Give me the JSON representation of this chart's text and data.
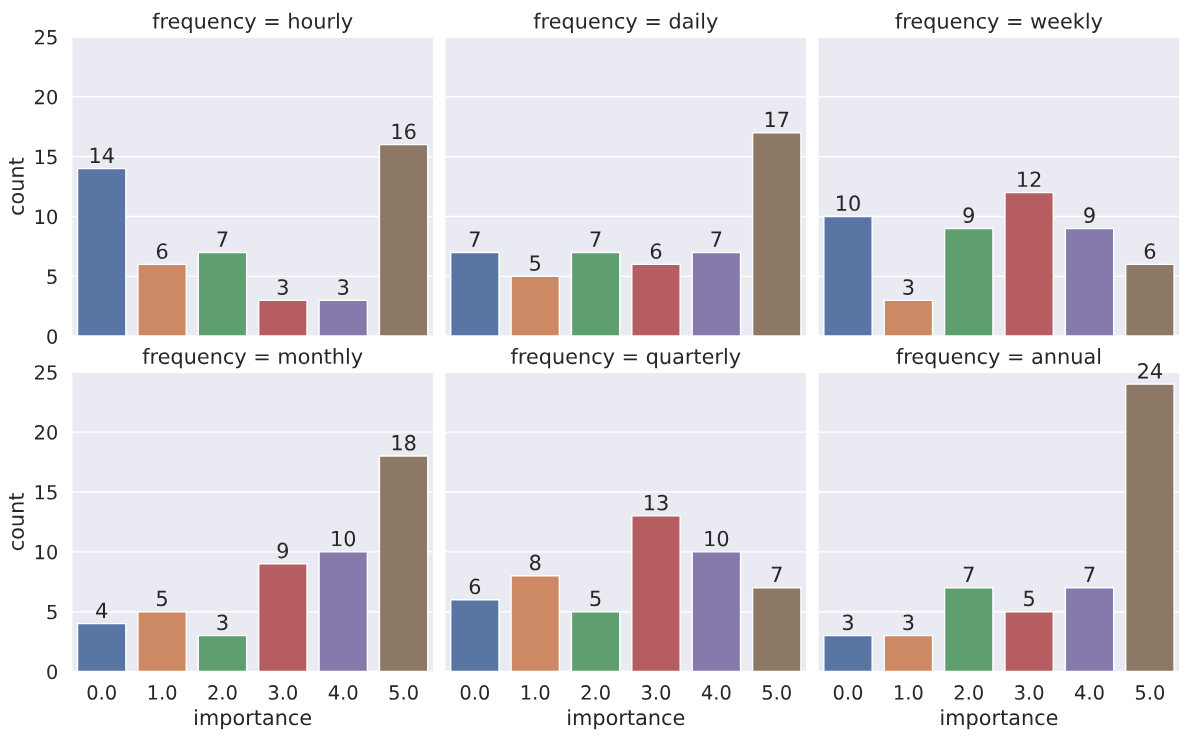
{
  "chart_data": [
    {
      "type": "bar",
      "title": "frequency = hourly",
      "ylabel": "count",
      "categories": [
        "0.0",
        "1.0",
        "2.0",
        "3.0",
        "4.0",
        "5.0"
      ],
      "values": [
        14,
        6,
        7,
        3,
        3,
        16
      ],
      "colors": [
        "#5975a4",
        "#cc8963",
        "#5f9e6e",
        "#b55d60",
        "#857aab",
        "#8d7866"
      ],
      "ylim": [
        0,
        25
      ],
      "yticks": [
        0,
        5,
        10,
        15,
        20,
        25
      ],
      "grid": "y",
      "data_labels": true,
      "tick_labels": "y"
    },
    {
      "type": "bar",
      "title": "frequency = daily",
      "categories": [
        "0.0",
        "1.0",
        "2.0",
        "3.0",
        "4.0",
        "5.0"
      ],
      "values": [
        7,
        5,
        7,
        6,
        7,
        17
      ],
      "colors": [
        "#5975a4",
        "#cc8963",
        "#5f9e6e",
        "#b55d60",
        "#857aab",
        "#8d7866"
      ],
      "ylim": [
        0,
        25
      ],
      "yticks": [
        0,
        5,
        10,
        15,
        20,
        25
      ],
      "grid": "y",
      "data_labels": true,
      "tick_labels": false
    },
    {
      "type": "bar",
      "title": "frequency = weekly",
      "categories": [
        "0.0",
        "1.0",
        "2.0",
        "3.0",
        "4.0",
        "5.0"
      ],
      "values": [
        10,
        3,
        9,
        12,
        9,
        6
      ],
      "colors": [
        "#5975a4",
        "#cc8963",
        "#5f9e6e",
        "#b55d60",
        "#857aab",
        "#8d7866"
      ],
      "ylim": [
        0,
        25
      ],
      "yticks": [
        0,
        5,
        10,
        15,
        20,
        25
      ],
      "grid": "y",
      "data_labels": true,
      "tick_labels": false
    },
    {
      "type": "bar",
      "title": "frequency = monthly",
      "xlabel": "importance",
      "ylabel": "count",
      "categories": [
        "0.0",
        "1.0",
        "2.0",
        "3.0",
        "4.0",
        "5.0"
      ],
      "values": [
        4,
        5,
        3,
        9,
        10,
        18
      ],
      "colors": [
        "#5975a4",
        "#cc8963",
        "#5f9e6e",
        "#b55d60",
        "#857aab",
        "#8d7866"
      ],
      "ylim": [
        0,
        25
      ],
      "yticks": [
        0,
        5,
        10,
        15,
        20,
        25
      ],
      "grid": "y",
      "data_labels": true
    },
    {
      "type": "bar",
      "title": "frequency = quarterly",
      "xlabel": "importance",
      "categories": [
        "0.0",
        "1.0",
        "2.0",
        "3.0",
        "4.0",
        "5.0"
      ],
      "values": [
        6,
        8,
        5,
        13,
        10,
        7
      ],
      "colors": [
        "#5975a4",
        "#cc8963",
        "#5f9e6e",
        "#b55d60",
        "#857aab",
        "#8d7866"
      ],
      "ylim": [
        0,
        25
      ],
      "yticks": [
        0,
        5,
        10,
        15,
        20,
        25
      ],
      "grid": "y",
      "data_labels": true,
      "tick_labels": "x"
    },
    {
      "type": "bar",
      "title": "frequency = annual",
      "xlabel": "importance",
      "categories": [
        "0.0",
        "1.0",
        "2.0",
        "3.0",
        "4.0",
        "5.0"
      ],
      "values": [
        3,
        3,
        7,
        5,
        7,
        24
      ],
      "colors": [
        "#5975a4",
        "#cc8963",
        "#5f9e6e",
        "#b55d60",
        "#857aab",
        "#8d7866"
      ],
      "ylim": [
        0,
        25
      ],
      "yticks": [
        0,
        5,
        10,
        15,
        20,
        25
      ],
      "grid": "y",
      "data_labels": true,
      "tick_labels": "x"
    }
  ]
}
